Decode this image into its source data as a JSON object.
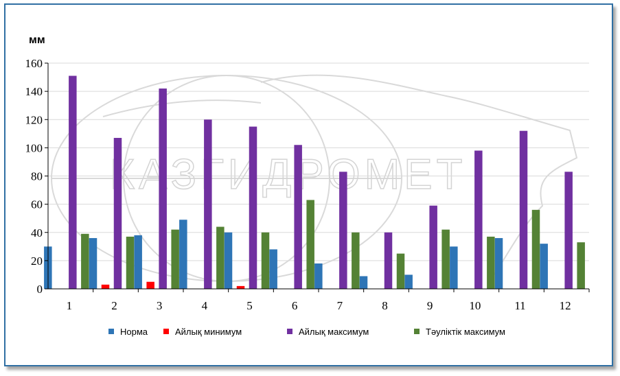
{
  "chart_data": {
    "type": "bar",
    "ylabel": "мм",
    "ylim": [
      0,
      160
    ],
    "yticks": [
      0,
      20,
      40,
      60,
      80,
      100,
      120,
      140,
      160
    ],
    "grid": true,
    "legend_position": "bottom",
    "categories": [
      "1",
      "2",
      "3",
      "4",
      "5",
      "6",
      "7",
      "8",
      "9",
      "10",
      "11",
      "12"
    ],
    "series": [
      {
        "name": "Норма",
        "color": "#2e75b6",
        "values": [
          30,
          36,
          38,
          49,
          40,
          28,
          18,
          9,
          10,
          30,
          36,
          32
        ]
      },
      {
        "name": "Айлық минимум",
        "color": "#ff0000",
        "values": [
          0,
          3,
          5,
          0,
          2,
          0,
          0,
          0,
          0,
          0,
          0,
          0
        ]
      },
      {
        "name": "Айлық максимум",
        "color": "#7030a0",
        "values": [
          151,
          107,
          142,
          120,
          115,
          102,
          83,
          40,
          59,
          98,
          112,
          83
        ]
      },
      {
        "name": "Тәуліктік максимум",
        "color": "#548235",
        "values": [
          39,
          37,
          42,
          44,
          40,
          63,
          40,
          25,
          42,
          37,
          56,
          33
        ]
      }
    ]
  },
  "watermark": {
    "text": "КАЗГИДРОМЕТ"
  }
}
